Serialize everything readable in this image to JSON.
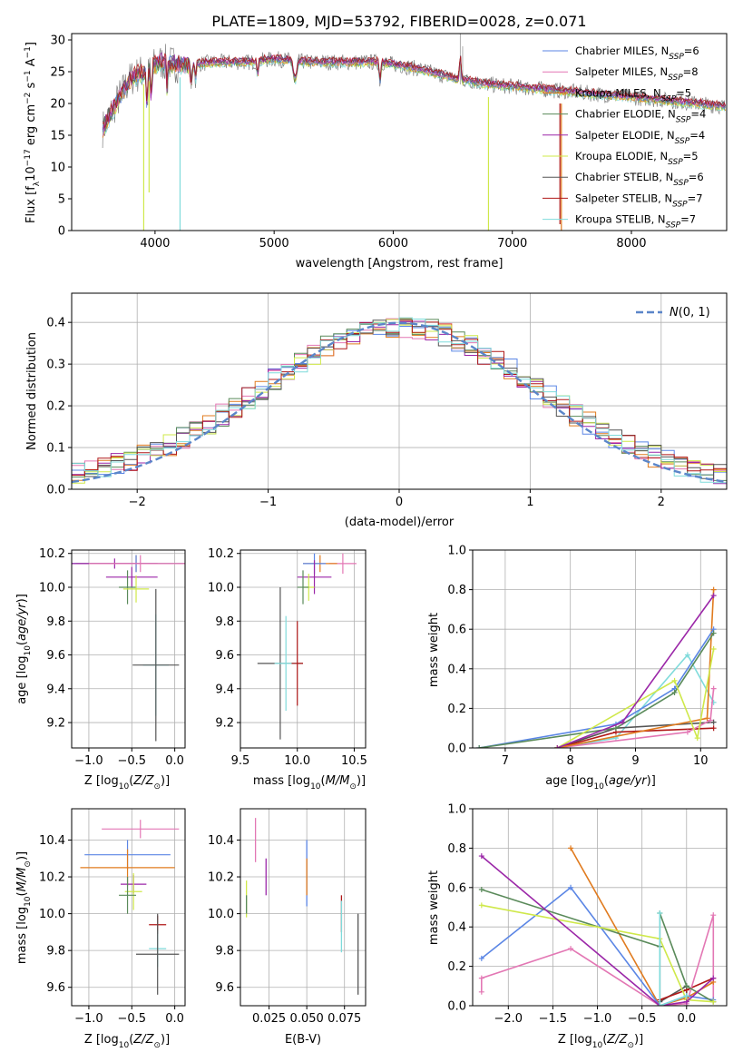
{
  "title": "PLATE=1809, MJD=53792, FIBERID=0028, z=0.071",
  "colors": {
    "Chabrier MILES": "#5b86e5",
    "Salpeter MILES": "#e377b4",
    "Kroupa MILES": "#e07b1f",
    "Chabrier ELODIE": "#5a8a5a",
    "Salpeter ELODIE": "#9b27a8",
    "Kroupa ELODIE": "#cfe84a",
    "Chabrier STELIB": "#555555",
    "Salpeter STELIB": "#b01818",
    "Kroupa STELIB": "#7fdbdb"
  },
  "chart_data": [
    {
      "type": "line",
      "xlabel": "wavelength [Angstrom, rest frame]",
      "ylabel": "Flux [f_λ10^-17 erg cm^-2 s^-1 A^-1]",
      "xlim": [
        3300,
        8800
      ],
      "ylim": [
        0,
        31
      ],
      "xticks": [
        4000,
        5000,
        6000,
        7000,
        8000
      ],
      "yticks": [
        0,
        5,
        10,
        15,
        20,
        25,
        30
      ],
      "legend": "top-right",
      "grid": false,
      "series": [
        {
          "name": "Chabrier MILES, N_SSP=6"
        },
        {
          "name": "Salpeter MILES, N_SSP=8"
        },
        {
          "name": "Kroupa MILES, N_SSP=5"
        },
        {
          "name": "Chabrier ELODIE, N_SSP=4"
        },
        {
          "name": "Salpeter ELODIE, N_SSP=4"
        },
        {
          "name": "Kroupa ELODIE, N_SSP=5"
        },
        {
          "name": "Chabrier STELIB, N_SSP=6"
        },
        {
          "name": "Salpeter STELIB, N_SSP=7"
        },
        {
          "name": "Kroupa STELIB, N_SSP=7"
        }
      ],
      "spectrum_anchors": {
        "x": [
          3560,
          3700,
          3800,
          3950,
          4050,
          4250,
          4500,
          4800,
          5000,
          5300,
          5600,
          5900,
          6200,
          6500,
          6800,
          7100,
          7400,
          7700,
          8000,
          8300,
          8790
        ],
        "y": [
          16,
          21,
          24,
          25.5,
          26.5,
          26,
          26.5,
          26.5,
          27,
          26.5,
          26.5,
          26.5,
          25.5,
          24,
          23,
          22.5,
          22,
          21.5,
          21,
          20.5,
          19.5
        ]
      }
    },
    {
      "type": "histogram",
      "xlabel": "(data-model)/error",
      "ylabel": "Normed distribution",
      "xlim": [
        -2.5,
        2.5
      ],
      "ylim": [
        0,
        0.47
      ],
      "xticks": [
        -2,
        -1,
        0,
        1,
        2
      ],
      "yticks": [
        0.0,
        0.1,
        0.2,
        0.3,
        0.4
      ],
      "legend_entry": "N(0,1)",
      "legend": "top-right",
      "grid": true
    },
    {
      "type": "scatter",
      "xlabel": "Z [log10(Z/Z⊙)]",
      "ylabel": "age [log10(age/yr)]",
      "xlim": [
        -1.2,
        0.12
      ],
      "ylim": [
        9.05,
        10.22
      ],
      "xticks": [
        -1.0,
        -0.5,
        0.0
      ],
      "yticks": [
        9.2,
        9.4,
        9.6,
        9.8,
        10.0,
        10.2
      ],
      "grid": true
    },
    {
      "type": "scatter",
      "xlabel": "mass [log10(M/M⊙)]",
      "xlim": [
        9.5,
        10.6
      ],
      "ylim": [
        9.05,
        10.22
      ],
      "xticks": [
        9.0,
        9.5,
        10.0,
        10.5
      ],
      "yticks": [
        9.2,
        9.4,
        9.6,
        9.8,
        10.0,
        10.2
      ],
      "grid": true
    },
    {
      "type": "line",
      "xlabel": "age [log10(age/yr)]",
      "ylabel": "mass weight",
      "xlim": [
        6.5,
        10.4
      ],
      "ylim": [
        0,
        1
      ],
      "xticks": [
        7,
        8,
        9,
        10
      ],
      "yticks": [
        0.0,
        0.2,
        0.4,
        0.6,
        0.8,
        1.0
      ],
      "grid": true
    },
    {
      "type": "scatter",
      "xlabel": "Z [log10(Z/Z⊙)]",
      "ylabel": "mass [log10(M/M⊙)]",
      "xlim": [
        -1.2,
        0.12
      ],
      "ylim": [
        9.5,
        10.57
      ],
      "xticks": [
        -1.0,
        -0.5,
        0.0
      ],
      "yticks": [
        9.6,
        9.8,
        10.0,
        10.2,
        10.4
      ],
      "grid": true
    },
    {
      "type": "scatter",
      "xlabel": "E(B-V)",
      "xlim": [
        0.006,
        0.089
      ],
      "ylim": [
        9.5,
        10.57
      ],
      "xticks": [
        0.025,
        0.05,
        0.075
      ],
      "yticks": [
        9.6,
        9.8,
        10.0,
        10.2,
        10.4
      ],
      "grid": true
    },
    {
      "type": "line",
      "xlabel": "Z [log10(Z/Z⊙)]",
      "ylabel": "mass weight",
      "xlim": [
        -2.4,
        0.45
      ],
      "ylim": [
        0,
        1
      ],
      "xticks": [
        -2.0,
        -1.5,
        -1.0,
        -0.5,
        0.0
      ],
      "yticks": [
        0.0,
        0.2,
        0.4,
        0.6,
        0.8,
        1.0
      ],
      "grid": true
    }
  ]
}
